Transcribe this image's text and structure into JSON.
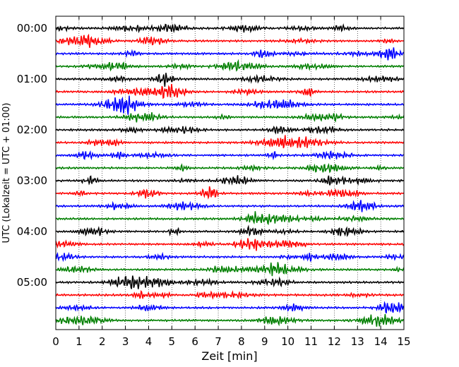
{
  "chart_data": {
    "type": "line",
    "title": "",
    "xlabel": "Zeit  [min]",
    "ylabel": "UTC (Lokalzeit = UTC + 01:00)",
    "xlim": [
      0,
      15
    ],
    "x_ticks": [
      "0",
      "1",
      "2",
      "3",
      "4",
      "5",
      "6",
      "7",
      "8",
      "9",
      "10",
      "11",
      "12",
      "13",
      "14",
      "15"
    ],
    "y_ticks": [
      "00:00",
      "01:00",
      "02:00",
      "03:00",
      "04:00",
      "05:00"
    ],
    "grid": "vertical dotted at each minute",
    "trace_colors": [
      "#000000",
      "#ff0000",
      "#0000ff",
      "#007f00"
    ],
    "rows": [
      "00:00",
      "00:15",
      "00:30",
      "00:45",
      "01:00",
      "01:15",
      "01:30",
      "01:45",
      "02:00",
      "02:15",
      "02:30",
      "02:45",
      "03:00",
      "03:15",
      "03:30",
      "03:45",
      "04:00",
      "04:15",
      "04:30",
      "04:45",
      "05:00",
      "05:15",
      "05:30",
      "05:45"
    ]
  }
}
